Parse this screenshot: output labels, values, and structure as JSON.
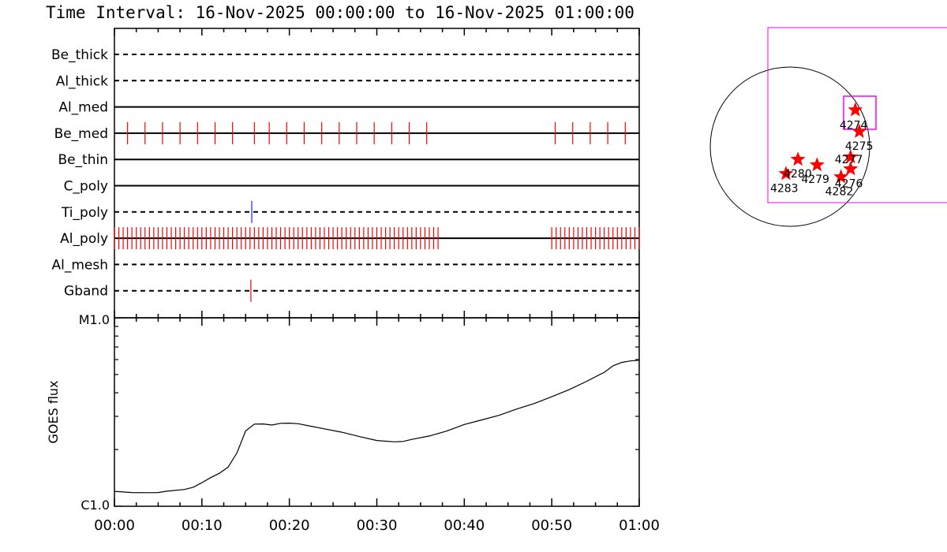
{
  "title": "Time Interval: 16-Nov-2025 00:00:00 to 16-Nov-2025 01:00:00",
  "colors": {
    "axis": "#000000",
    "tick_red": "#ff0000",
    "tick_blue": "#1a1aff",
    "fov_box": "#ff00ff",
    "star": "#ff0000"
  },
  "chart_data": [
    {
      "type": "timeline",
      "x_range_minutes": [
        0,
        60
      ],
      "x_tick_labels": [
        "00:00",
        "00:10",
        "00:20",
        "00:30",
        "00:40",
        "00:50",
        "01:00"
      ],
      "channels": [
        {
          "name": "Be_thick",
          "line": "dashed",
          "obs_minutes": [],
          "color": "red"
        },
        {
          "name": "Al_thick",
          "line": "dashed",
          "obs_minutes": [],
          "color": "red"
        },
        {
          "name": "Al_med",
          "line": "solid",
          "obs_minutes": [],
          "color": "red"
        },
        {
          "name": "Be_med",
          "line": "solid",
          "color": "red",
          "obs_minutes": [
            1.5,
            3.5,
            5.5,
            7.5,
            9.5,
            11.5,
            13.5,
            16.0,
            17.7,
            19.7,
            21.7,
            23.7,
            25.7,
            27.7,
            29.7,
            31.7,
            33.7,
            35.7,
            50.4,
            52.4,
            54.4,
            56.4,
            58.4
          ]
        },
        {
          "name": "Be_thin",
          "line": "solid",
          "obs_minutes": [],
          "color": "red"
        },
        {
          "name": "C_poly",
          "line": "solid",
          "obs_minutes": [],
          "color": "red"
        },
        {
          "name": "Ti_poly",
          "line": "dashed",
          "obs_minutes": [
            15.7
          ],
          "color": "blue"
        },
        {
          "name": "Al_poly",
          "line": "solid",
          "color": "red",
          "obs_ranges": [
            {
              "start": 0.0,
              "end": 37.0,
              "step": 0.5
            },
            {
              "start": 50.0,
              "end": 60.0,
              "step": 0.5
            }
          ]
        },
        {
          "name": "Al_mesh",
          "line": "dashed",
          "obs_minutes": [],
          "color": "red"
        },
        {
          "name": "Gband",
          "line": "dashed",
          "obs_minutes": [
            15.6
          ],
          "color": "red"
        }
      ]
    },
    {
      "type": "line",
      "ylabel": "GOES flux",
      "y_tick_labels": [
        "M1.0",
        "C1.0"
      ],
      "ylim_log": [
        -6,
        -5
      ],
      "x_range_minutes": [
        0,
        60
      ],
      "series": [
        {
          "x": [
            0,
            2,
            4,
            5,
            6,
            8,
            9,
            10,
            11,
            12,
            13,
            14,
            15,
            16,
            17,
            18,
            19,
            20,
            21,
            22,
            24,
            26,
            28,
            30,
            32,
            33,
            34,
            36,
            38,
            40,
            42,
            44,
            46,
            48,
            50,
            52,
            54,
            56,
            57,
            58,
            59,
            60
          ],
          "log_flux": [
            -5.921,
            -5.927,
            -5.928,
            -5.927,
            -5.92,
            -5.911,
            -5.899,
            -5.875,
            -5.848,
            -5.825,
            -5.792,
            -5.717,
            -5.6,
            -5.564,
            -5.563,
            -5.569,
            -5.56,
            -5.559,
            -5.562,
            -5.571,
            -5.589,
            -5.607,
            -5.63,
            -5.651,
            -5.658,
            -5.656,
            -5.645,
            -5.627,
            -5.601,
            -5.566,
            -5.542,
            -5.517,
            -5.484,
            -5.455,
            -5.419,
            -5.381,
            -5.337,
            -5.289,
            -5.255,
            -5.237,
            -5.229,
            -5.225
          ]
        }
      ]
    },
    {
      "type": "scatter",
      "role": "solar-disk-map",
      "regions": [
        {
          "label": "4274",
          "x": 0.82,
          "y": 0.46
        },
        {
          "label": "4275",
          "x": 0.87,
          "y": 0.19
        },
        {
          "label": "4277",
          "x": 0.76,
          "y": -0.13
        },
        {
          "label": "4276",
          "x": 0.76,
          "y": -0.28
        },
        {
          "label": "4282",
          "x": 0.64,
          "y": -0.38
        },
        {
          "label": "4279",
          "x": 0.34,
          "y": -0.23
        },
        {
          "label": "4280",
          "x": 0.1,
          "y": -0.16
        },
        {
          "label": "4283",
          "x": -0.05,
          "y": -0.34
        }
      ]
    }
  ]
}
